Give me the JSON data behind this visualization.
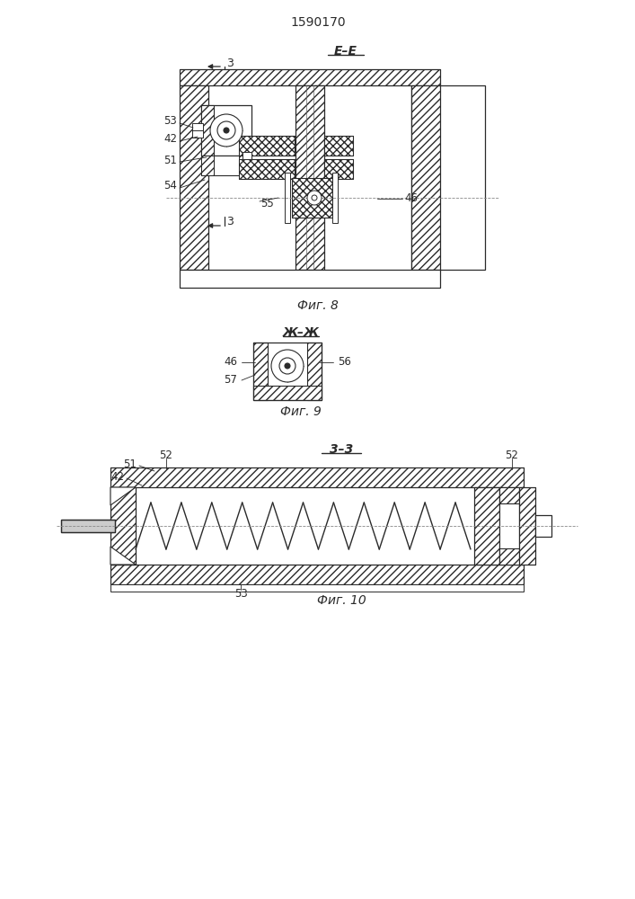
{
  "title": "1590170",
  "bg_color": "#ffffff",
  "line_color": "#2a2a2a",
  "fig8_label": "Е–Е",
  "fig8_caption": "Фиг. 8",
  "fig9_label": "Ж–Ж",
  "fig9_caption": "Фиг. 9",
  "fig10_label": "3–3",
  "fig10_caption": "Фиг. 10"
}
